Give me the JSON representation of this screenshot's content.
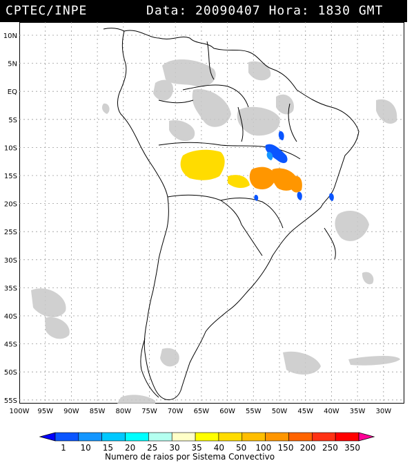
{
  "header": {
    "title": "CPTEC/INPE",
    "date_label": "Data:",
    "date_value": "20090407",
    "hour_label": "Hora:",
    "hour_value": "1830",
    "timezone": "GMT"
  },
  "map": {
    "lat_labels": [
      "10N",
      "5N",
      "EQ",
      "5S",
      "10S",
      "15S",
      "20S",
      "25S",
      "30S",
      "35S",
      "40S",
      "45S",
      "50S",
      "55S"
    ],
    "lon_labels": [
      "100W",
      "95W",
      "90W",
      "85W",
      "80W",
      "75W",
      "70W",
      "65W",
      "60W",
      "55W",
      "50W",
      "45W",
      "40W",
      "35W",
      "30W"
    ]
  },
  "legend": {
    "values": [
      "1",
      "10",
      "15",
      "20",
      "25",
      "30",
      "35",
      "40",
      "50",
      "100",
      "150",
      "200",
      "250",
      "350"
    ],
    "colors": [
      "#0000ff",
      "#0a55ff",
      "#1496ff",
      "#00c8ff",
      "#00ffff",
      "#b4fff0",
      "#ffffc8",
      "#ffff00",
      "#ffdc00",
      "#ffbe00",
      "#ff9600",
      "#ff6400",
      "#ff3214",
      "#ff0000",
      "#ff0096"
    ],
    "caption": "Numero de raios por Sistema Convectivo"
  }
}
